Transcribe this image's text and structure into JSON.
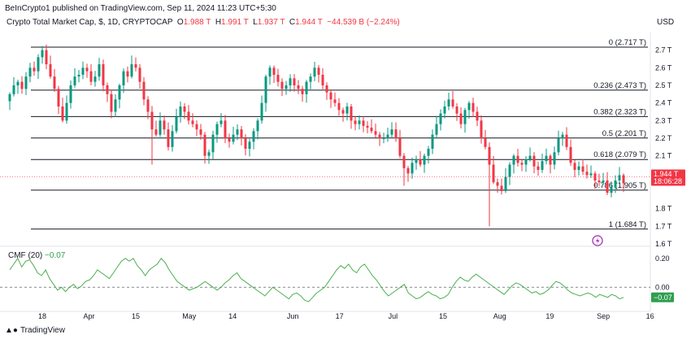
{
  "header": {
    "published": "BeInCrypto1 published on TradingView.com, Sep 11, 2024 11:23 UTC+5:30",
    "symbol": "Crypto Total Market Cap, $, 1D, CRYPTOCAP",
    "o_key": "O",
    "o_val": "1.988 T",
    "h_key": "H",
    "h_val": "1.991 T",
    "l_key": "L",
    "l_val": "1.937 T",
    "c_key": "C",
    "c_val": "1.944 T",
    "change": "−44.539 B (−2.24%)",
    "currency": "USD"
  },
  "indicator": {
    "name": "CMF (20)",
    "value": "−0.07",
    "last_tag": "−0.07"
  },
  "price_tag": {
    "price": "1.944 T",
    "countdown": "18:06:28"
  },
  "footer": {
    "brand": "TradingView"
  },
  "colors": {
    "up": "#089981",
    "down": "#f23645",
    "cmf": "#4caf50",
    "fib": "#131722",
    "countdown_bg": "#f23645"
  },
  "chart_data": [
    {
      "type": "candlestick",
      "title": "Crypto Total Market Cap, $, 1D, CRYPTOCAP",
      "ylim": [
        1.6,
        2.8
      ],
      "y_ticks": [
        "2.7 T",
        "2.6 T",
        "2.5 T",
        "2.4 T",
        "2.3 T",
        "2.2 T",
        "2.1 T",
        "2 T",
        "1.8 T",
        "1.7 T",
        "1.6 T"
      ],
      "y_tick_values": [
        2.7,
        2.6,
        2.5,
        2.4,
        2.3,
        2.2,
        2.1,
        2.0,
        1.8,
        1.7,
        1.6
      ],
      "x_ticks": [
        "18",
        "Apr",
        "15",
        "May",
        "14",
        "Jun",
        "17",
        "Jul",
        "15",
        "Aug",
        "19",
        "Sep",
        "16"
      ],
      "x_tick_days": [
        0,
        14,
        28,
        44,
        57,
        75,
        89,
        105,
        120,
        137,
        152,
        168,
        182
      ],
      "fib_levels": [
        {
          "label": "0 (2.717 T)",
          "value": 2.717
        },
        {
          "label": "0.236 (2.473 T)",
          "value": 2.473
        },
        {
          "label": "0.382 (2.323 T)",
          "value": 2.323
        },
        {
          "label": "0.5 (2.201 T)",
          "value": 2.201
        },
        {
          "label": "0.618 (2.079 T)",
          "value": 2.079
        },
        {
          "label": "0.786 (1.905 T)",
          "value": 1.905
        },
        {
          "label": "1 (1.684 T)",
          "value": 1.684
        }
      ],
      "close_series": [
        2.45,
        2.5,
        2.52,
        2.48,
        2.55,
        2.6,
        2.58,
        2.66,
        2.7,
        2.62,
        2.55,
        2.48,
        2.38,
        2.3,
        2.4,
        2.5,
        2.55,
        2.56,
        2.6,
        2.58,
        2.52,
        2.55,
        2.62,
        2.5,
        2.45,
        2.35,
        2.42,
        2.5,
        2.58,
        2.55,
        2.62,
        2.6,
        2.52,
        2.42,
        2.35,
        2.25,
        2.22,
        2.3,
        2.25,
        2.15,
        2.24,
        2.32,
        2.38,
        2.35,
        2.3,
        2.28,
        2.25,
        2.22,
        2.1,
        2.12,
        2.22,
        2.28,
        2.3,
        2.2,
        2.18,
        2.22,
        2.25,
        2.2,
        2.14,
        2.18,
        2.24,
        2.3,
        2.4,
        2.55,
        2.6,
        2.56,
        2.52,
        2.48,
        2.5,
        2.54,
        2.5,
        2.48,
        2.45,
        2.52,
        2.55,
        2.6,
        2.56,
        2.5,
        2.46,
        2.42,
        2.4,
        2.36,
        2.34,
        2.38,
        2.3,
        2.28,
        2.3,
        2.27,
        2.26,
        2.24,
        2.22,
        2.2,
        2.2,
        2.22,
        2.25,
        2.2,
        2.1,
        2.03,
        2.0,
        2.06,
        2.08,
        2.05,
        2.1,
        2.14,
        2.22,
        2.28,
        2.34,
        2.38,
        2.42,
        2.38,
        2.34,
        2.28,
        2.36,
        2.4,
        2.35,
        2.3,
        2.2,
        2.15,
        2.05,
        1.95,
        1.93,
        1.9,
        1.98,
        2.05,
        2.1,
        2.06,
        2.05,
        2.08,
        2.1,
        2.04,
        2.02,
        2.07,
        2.1,
        2.05,
        2.12,
        2.2,
        2.22,
        2.15,
        2.06,
        2.02,
        2.04,
        2.01,
        1.99,
        2.0,
        1.96,
        1.95,
        1.96,
        1.89,
        1.92,
        1.96,
        1.99,
        1.944
      ],
      "series": [
        {
          "values": []
        }
      ]
    },
    {
      "type": "line",
      "title": "CMF (20)",
      "ylim": [
        -0.15,
        0.3
      ],
      "y_ticks": [
        "0.20",
        "0.00"
      ],
      "y_tick_values": [
        0.2,
        0.0
      ],
      "zero_line": 0.0,
      "values": [
        0.12,
        0.16,
        0.2,
        0.14,
        0.18,
        0.19,
        0.15,
        0.1,
        0.08,
        0.12,
        0.06,
        0.02,
        -0.02,
        0.0,
        -0.03,
        0.0,
        0.02,
        -0.01,
        0.01,
        0.04,
        0.05,
        0.08,
        0.12,
        0.1,
        0.08,
        0.06,
        0.1,
        0.14,
        0.18,
        0.2,
        0.18,
        0.2,
        0.15,
        0.12,
        0.08,
        0.12,
        0.14,
        0.16,
        0.2,
        0.17,
        0.12,
        0.08,
        0.04,
        0.02,
        0.0,
        -0.02,
        -0.01,
        0.0,
        0.02,
        0.04,
        0.02,
        0.0,
        -0.02,
        0.0,
        0.03,
        0.05,
        0.08,
        0.1,
        0.06,
        0.04,
        0.02,
        0.0,
        -0.02,
        -0.04,
        -0.06,
        -0.03,
        0.0,
        -0.02,
        -0.04,
        -0.06,
        -0.08,
        -0.05,
        -0.04,
        -0.06,
        -0.09,
        -0.1,
        -0.07,
        -0.04,
        -0.02,
        0.0,
        0.04,
        0.08,
        0.12,
        0.15,
        0.13,
        0.16,
        0.12,
        0.1,
        0.14,
        0.16,
        0.12,
        0.08,
        0.05,
        0.01,
        -0.03,
        -0.06,
        -0.04,
        -0.02,
        0.0,
        0.02,
        -0.04,
        -0.06,
        -0.08,
        -0.07,
        -0.05,
        -0.03,
        -0.05,
        -0.06,
        -0.08,
        -0.07,
        -0.05,
        0.0,
        0.04,
        0.07,
        0.05,
        0.04,
        0.07,
        0.09,
        0.07,
        0.05,
        0.03,
        0.01,
        -0.01,
        -0.03,
        -0.05,
        -0.02,
        0.01,
        0.03,
        0.02,
        0.0,
        -0.02,
        -0.04,
        -0.03,
        -0.05,
        -0.04,
        -0.02,
        0.01,
        0.04,
        0.03,
        0.01,
        -0.02,
        -0.04,
        -0.05,
        -0.06,
        -0.05,
        -0.04,
        -0.05,
        -0.07,
        -0.05,
        -0.06,
        -0.07,
        -0.05,
        -0.06,
        -0.08,
        -0.07
      ]
    }
  ]
}
